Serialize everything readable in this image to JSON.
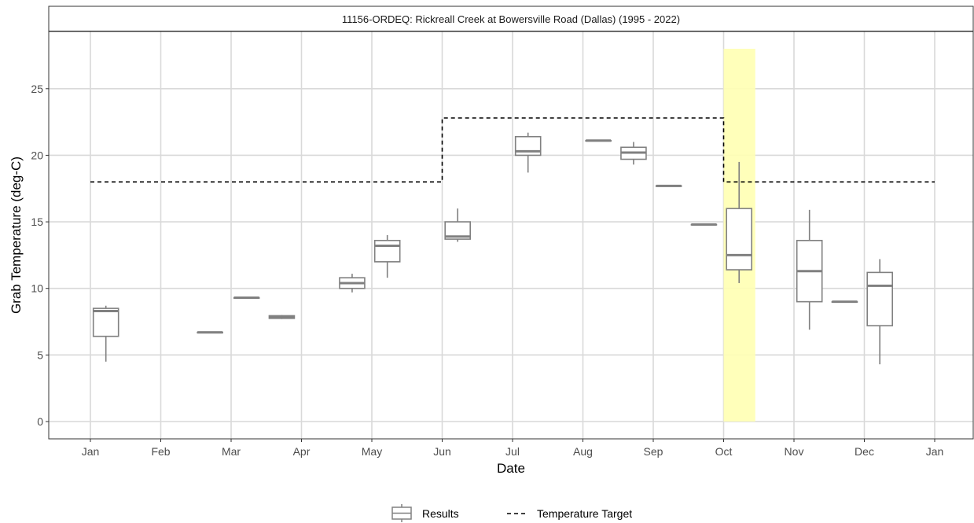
{
  "chart_data": {
    "type": "boxplot",
    "title": "11156-ORDEQ: Rickreall Creek at Bowersville Road (Dallas) (1995 - 2022)",
    "xlabel": "Date",
    "ylabel": "Grab Temperature (deg-C)",
    "x_tick_labels": [
      "Jan",
      "Feb",
      "Mar",
      "Apr",
      "May",
      "Jun",
      "Jul",
      "Aug",
      "Sep",
      "Oct",
      "Nov",
      "Dec",
      "Jan"
    ],
    "ylim": [
      -1.3,
      29.3
    ],
    "y_ticks": [
      0,
      5,
      10,
      15,
      20,
      25
    ],
    "grid": true,
    "legend": {
      "position": "bottom",
      "entries": [
        {
          "label": "Results",
          "type": "box"
        },
        {
          "label": "Temperature Target",
          "type": "dashed-line"
        }
      ]
    },
    "colors": {
      "box": "#808080",
      "target": "#000000",
      "highlight": "#ffffb3",
      "grid": "#d9d9d9"
    },
    "highlight": {
      "start_month": 9.0,
      "end_month": 9.45,
      "ymin": 0,
      "ymax": 28
    },
    "series": [
      {
        "name": "Results",
        "boxes": [
          {
            "month": 0.22,
            "min": 4.5,
            "q1": 6.4,
            "median": 8.3,
            "q3": 8.5,
            "max": 8.7
          },
          {
            "month": 1.7,
            "min": 6.7,
            "q1": 6.7,
            "median": 6.7,
            "q3": 6.7,
            "max": 6.7
          },
          {
            "month": 2.22,
            "min": 9.3,
            "q1": 9.3,
            "median": 9.3,
            "q3": 9.3,
            "max": 9.3
          },
          {
            "month": 2.72,
            "min": 7.7,
            "q1": 7.75,
            "median": 7.85,
            "q3": 7.95,
            "max": 8.0
          },
          {
            "month": 3.72,
            "min": 9.7,
            "q1": 10.0,
            "median": 10.4,
            "q3": 10.8,
            "max": 11.1
          },
          {
            "month": 4.22,
            "min": 10.8,
            "q1": 12.0,
            "median": 13.2,
            "q3": 13.6,
            "max": 14.0
          },
          {
            "month": 5.22,
            "min": 13.5,
            "q1": 13.7,
            "median": 13.9,
            "q3": 15.0,
            "max": 16.0
          },
          {
            "month": 6.22,
            "min": 18.7,
            "q1": 20.0,
            "median": 20.3,
            "q3": 21.4,
            "max": 21.7
          },
          {
            "month": 7.22,
            "min": 21.1,
            "q1": 21.1,
            "median": 21.1,
            "q3": 21.1,
            "max": 21.1
          },
          {
            "month": 7.72,
            "min": 19.3,
            "q1": 19.7,
            "median": 20.2,
            "q3": 20.6,
            "max": 21.0
          },
          {
            "month": 8.22,
            "min": 17.7,
            "q1": 17.7,
            "median": 17.7,
            "q3": 17.7,
            "max": 17.7
          },
          {
            "month": 8.72,
            "min": 14.8,
            "q1": 14.8,
            "median": 14.8,
            "q3": 14.8,
            "max": 14.8
          },
          {
            "month": 9.22,
            "min": 10.4,
            "q1": 11.4,
            "median": 12.5,
            "q3": 16.0,
            "max": 19.5
          },
          {
            "month": 10.22,
            "min": 6.9,
            "q1": 9.0,
            "median": 11.3,
            "q3": 13.6,
            "max": 15.9
          },
          {
            "month": 10.72,
            "min": 9.0,
            "q1": 9.0,
            "median": 9.0,
            "q3": 9.0,
            "max": 9.0
          },
          {
            "month": 11.22,
            "min": 4.3,
            "q1": 7.2,
            "median": 10.2,
            "q3": 11.2,
            "max": 12.2
          }
        ]
      },
      {
        "name": "Temperature Target",
        "step_x": [
          0,
          5,
          5,
          9,
          9,
          12
        ],
        "step_y": [
          18,
          18,
          22.8,
          22.8,
          18,
          18
        ]
      }
    ]
  }
}
